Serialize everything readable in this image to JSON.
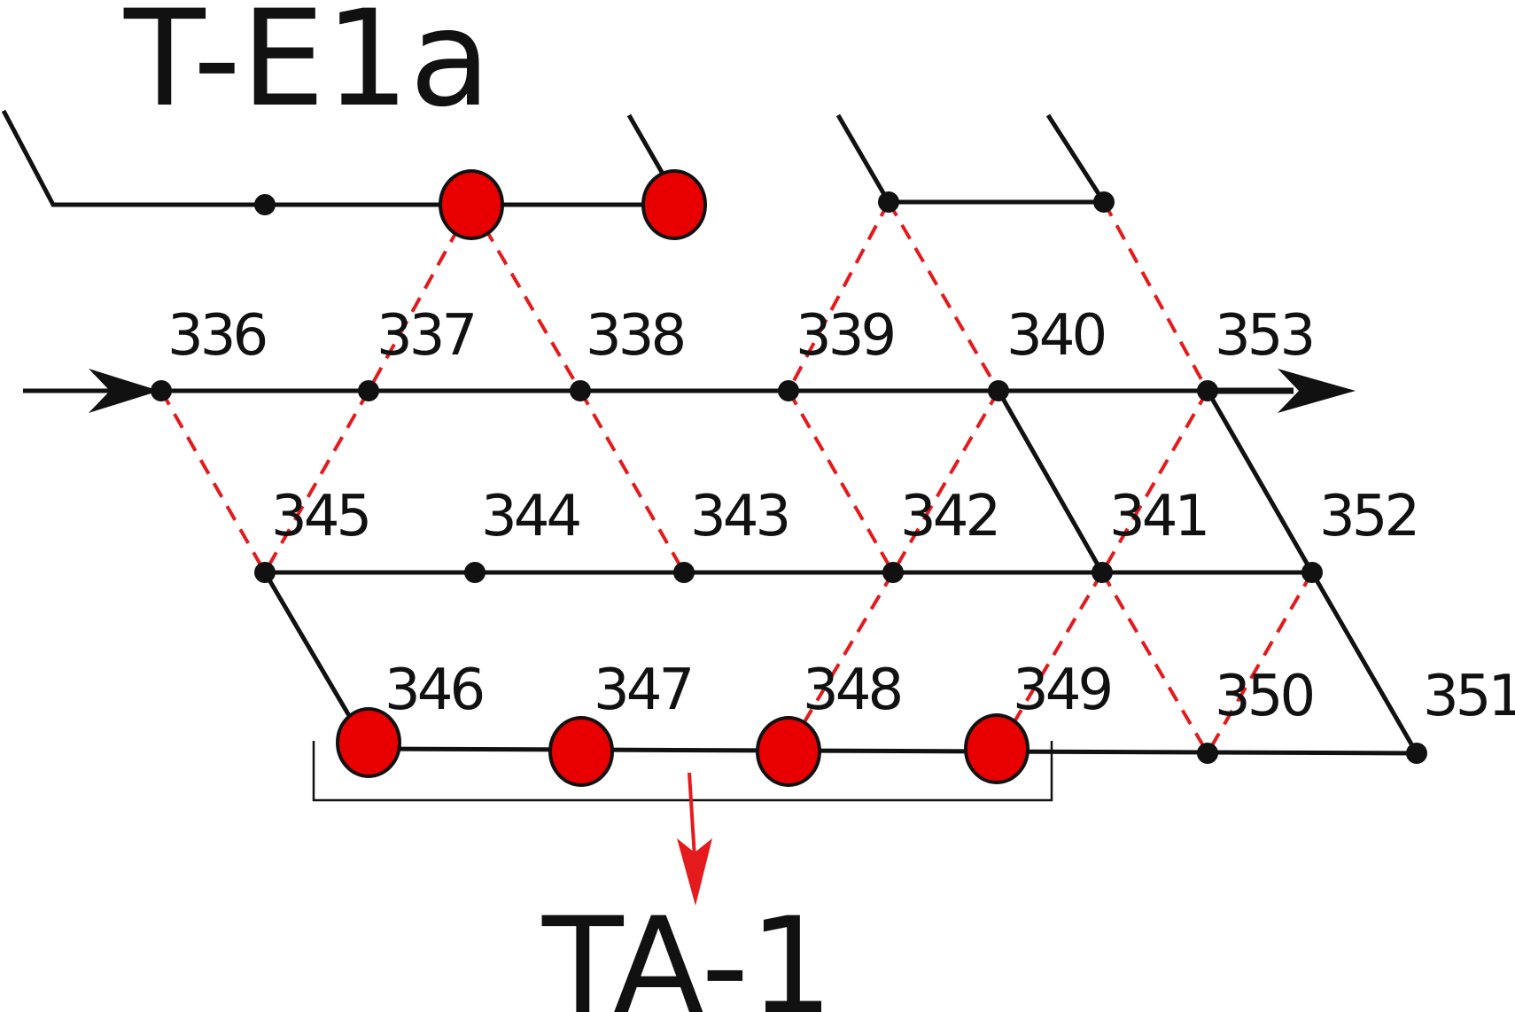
{
  "title_top": "T-E1a",
  "title_bottom": "TA-1",
  "node_labels": {
    "336": "336",
    "337": "337",
    "338": "338",
    "339": "339",
    "340": "340",
    "353": "353",
    "345": "345",
    "344": "344",
    "343": "343",
    "342": "342",
    "341": "341",
    "352": "352",
    "346": "346",
    "347": "347",
    "348": "348",
    "349": "349",
    "350": "350",
    "351": "351"
  },
  "colors": {
    "line": "#111111",
    "link_dashed": "#e41a1c",
    "highlight_fill": "#e80000",
    "arrow_out": "#e41a1c"
  },
  "highlighted_nodes": [
    "T-E1a-3",
    "T-E1a-4",
    "346",
    "347",
    "348",
    "349"
  ],
  "icons": [
    "arrow-right-icon",
    "arrow-down-icon"
  ]
}
